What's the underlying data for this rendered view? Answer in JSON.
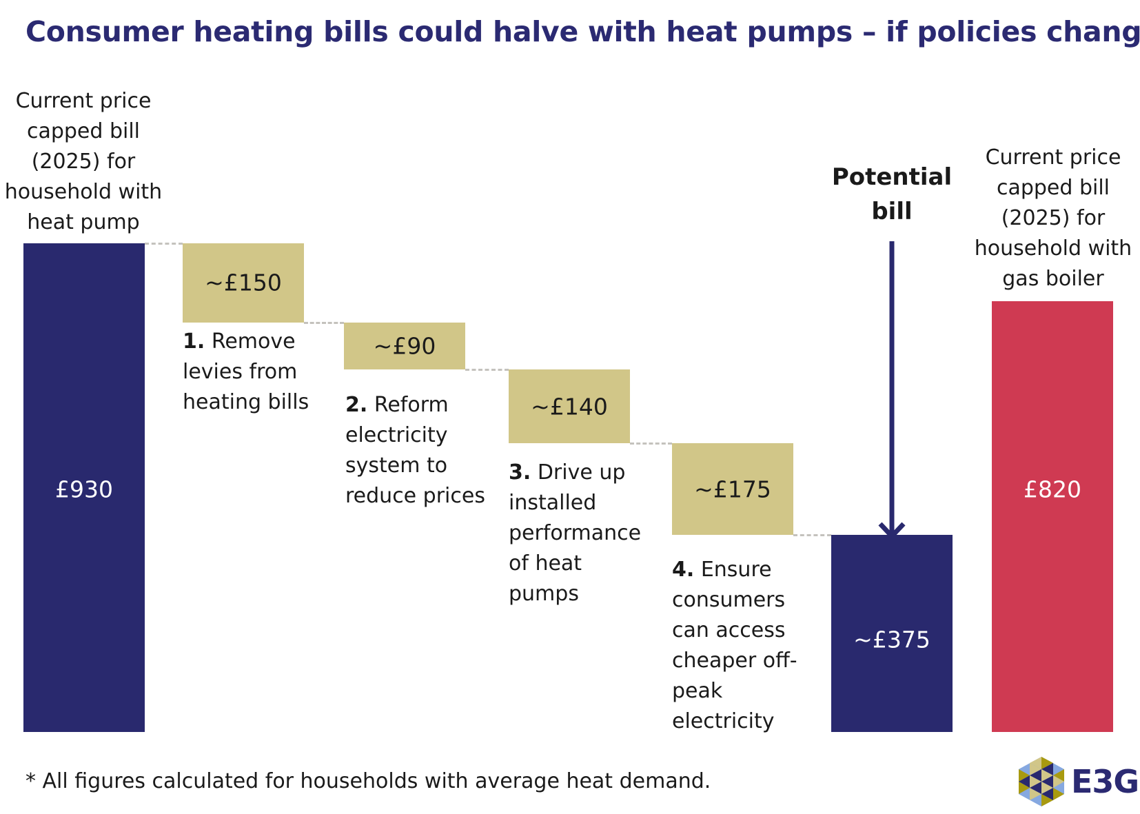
{
  "title": "Consumer heating bills could halve with heat pumps – if policies change",
  "chart_data": {
    "type": "waterfall",
    "title": "Consumer heating bills could halve with heat pumps – if policies change",
    "unit": "GBP per year",
    "bars": [
      {
        "key": "start",
        "kind": "total",
        "value": 930,
        "label": "£930",
        "caption": [
          "Current price",
          "capped bill",
          "(2025) for",
          "household with",
          "heat pump"
        ],
        "color": "#29296e"
      },
      {
        "key": "s1",
        "kind": "decrease",
        "value": -150,
        "label": "~£150",
        "num": "1.",
        "caption": [
          "Remove",
          "levies from",
          "heating bills"
        ],
        "color": "#d1c688"
      },
      {
        "key": "s2",
        "kind": "decrease",
        "value": -90,
        "label": "~£90",
        "num": "2.",
        "caption": [
          "Reform",
          "electricity",
          "system to",
          "reduce prices"
        ],
        "color": "#d1c688"
      },
      {
        "key": "s3",
        "kind": "decrease",
        "value": -140,
        "label": "~£140",
        "num": "3.",
        "caption": [
          "Drive up",
          "installed",
          "performance",
          "of heat",
          "pumps"
        ],
        "color": "#d1c688"
      },
      {
        "key": "s4",
        "kind": "decrease",
        "value": -175,
        "label": "~£175",
        "num": "4.",
        "caption": [
          "Ensure",
          "consumers",
          "can access",
          "cheaper off-",
          "peak",
          "electricity"
        ],
        "color": "#d1c688"
      },
      {
        "key": "potential",
        "kind": "total",
        "value": 375,
        "label": "~£375",
        "caption": [
          "Potential",
          "bill"
        ],
        "color": "#29296e"
      },
      {
        "key": "gas",
        "kind": "reference",
        "value": 820,
        "label": "£820",
        "caption": [
          "Current price",
          "capped bill",
          "(2025) for",
          "household with",
          "gas boiler"
        ],
        "color": "#cf3a52"
      }
    ]
  },
  "footnote": "* All figures calculated for households with average heat demand.",
  "logo": {
    "text": "E3G"
  }
}
